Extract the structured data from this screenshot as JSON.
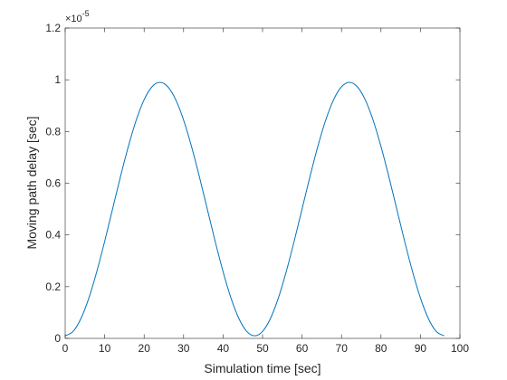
{
  "chart_data": {
    "type": "line",
    "title": "",
    "xlabel": "Simulation time [sec]",
    "ylabel": "Moving path delay [sec]",
    "xlim": [
      0,
      100
    ],
    "ylim": [
      0,
      1.2
    ],
    "y_multiplier_label": {
      "base": "×10",
      "exponent": "-5"
    },
    "x_ticks": [
      "0",
      "10",
      "20",
      "30",
      "40",
      "50",
      "60",
      "70",
      "80",
      "90",
      "100"
    ],
    "y_ticks": [
      "0",
      "0.2",
      "0.4",
      "0.6",
      "0.8",
      "1",
      "1.2"
    ],
    "grid": false,
    "line_color": "#0072BD",
    "series": [
      {
        "x": [
          0,
          2,
          4,
          6,
          8,
          10,
          12,
          14,
          16,
          18,
          20,
          22,
          24,
          26,
          28,
          30,
          32,
          34,
          36,
          38,
          40,
          42,
          44,
          46,
          48,
          50,
          52,
          54,
          56,
          58,
          60,
          62,
          64,
          66,
          68,
          70,
          72,
          74,
          76,
          78,
          80,
          82,
          84,
          86,
          88,
          90,
          92,
          94,
          96
        ],
        "y": [
          0.01,
          0.027,
          0.077,
          0.156,
          0.258,
          0.375,
          0.5,
          0.625,
          0.742,
          0.844,
          0.923,
          0.973,
          0.99,
          0.973,
          0.923,
          0.844,
          0.742,
          0.625,
          0.5,
          0.375,
          0.258,
          0.156,
          0.077,
          0.027,
          0.01,
          0.027,
          0.077,
          0.156,
          0.258,
          0.375,
          0.5,
          0.625,
          0.742,
          0.844,
          0.923,
          0.973,
          0.99,
          0.973,
          0.923,
          0.844,
          0.742,
          0.625,
          0.5,
          0.375,
          0.258,
          0.156,
          0.077,
          0.027,
          0.01
        ]
      }
    ]
  }
}
